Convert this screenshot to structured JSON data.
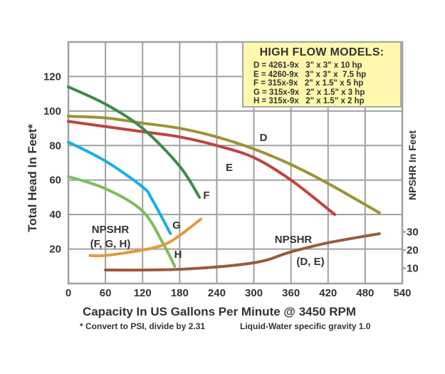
{
  "chart_data": {
    "type": "line",
    "title": "",
    "xlabel": "Capacity In US Gallons Per Minute @ 3450 RPM",
    "ylabel": "Total Head In Feet*",
    "y2label": "NPSHR In Feet",
    "xlim": [
      0,
      540
    ],
    "ylim": [
      0,
      140
    ],
    "y2lim": [
      0,
      40
    ],
    "xticks": [
      "0",
      "60",
      "120",
      "180",
      "240",
      "300",
      "360",
      "420",
      "480",
      "540"
    ],
    "yticks": [
      "20",
      "40",
      "60",
      "80",
      "100",
      "120"
    ],
    "y2ticks": [
      "10",
      "20",
      "30"
    ],
    "grid": true,
    "footnote_left": "* Convert to PSI, divide by 2.31",
    "footnote_right": "Liquid-Water specific gravity 1.0",
    "legend": {
      "title": "HIGH FLOW MODELS:",
      "placement": "top-right",
      "items": [
        "D = 4261-9x   3\" x 3\" x 10 hp",
        "E = 4260-9x   3\" x 3\" x  7.5 hp",
        "F = 315x-9x   2\" x 1.5\" x 5 hp",
        "G = 315x-9x   2\" x 1.5\" x 3 hp",
        "H = 315x-9x   2\" x 1.5\" x 2 hp"
      ]
    },
    "annotations": {
      "npshr_fgh_line1": "NPSHR",
      "npshr_fgh_line2": "(F, G, H)",
      "npshr_de_line1": "NPSHR",
      "npshr_de_line2": "(D, E)"
    },
    "series": [
      {
        "name": "D",
        "axis": "left",
        "color": "#9a9436",
        "x": [
          0,
          60,
          120,
          180,
          240,
          300,
          360,
          420,
          503
        ],
        "y": [
          97,
          96,
          93,
          90,
          85,
          78,
          69,
          58,
          41
        ]
      },
      {
        "name": "E",
        "axis": "left",
        "color": "#c0443e",
        "x": [
          0,
          60,
          120,
          180,
          240,
          300,
          360,
          431
        ],
        "y": [
          94,
          91,
          88,
          85,
          80,
          73,
          60,
          40
        ]
      },
      {
        "name": "F",
        "axis": "left",
        "color": "#3d8c48",
        "x": [
          0,
          60,
          120,
          180,
          212
        ],
        "y": [
          114,
          104,
          90,
          68,
          50
        ]
      },
      {
        "name": "G",
        "axis": "left",
        "color": "#1aaee6",
        "x": [
          0,
          60,
          120,
          135,
          165
        ],
        "y": [
          82,
          71,
          56,
          49,
          29
        ]
      },
      {
        "name": "H",
        "axis": "left",
        "color": "#7cbd5c",
        "x": [
          0,
          60,
          120,
          155,
          172
        ],
        "y": [
          62,
          55,
          42,
          22,
          10
        ]
      },
      {
        "name": "NPSHR (F, G, H)",
        "axis": "right",
        "color": "#e39a3c",
        "x": [
          35,
          60,
          120,
          155,
          180,
          214
        ],
        "y": [
          17,
          17,
          20,
          23,
          28,
          37
        ]
      },
      {
        "name": "NPSHR (D, E)",
        "axis": "right",
        "color": "#9b5a3c",
        "x": [
          60,
          180,
          300,
          360,
          420,
          503
        ],
        "y": [
          9,
          9.4,
          13,
          19,
          24,
          29
        ]
      }
    ]
  }
}
